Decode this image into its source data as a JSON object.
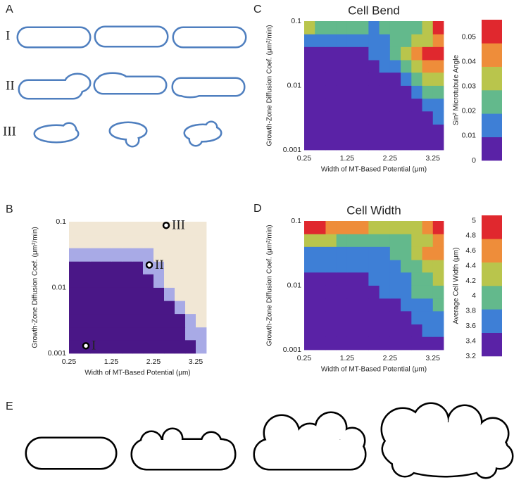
{
  "panel_labels": [
    "A",
    "B",
    "C",
    "D",
    "E"
  ],
  "panel_a": {
    "row_labels": [
      "I",
      "II",
      "III"
    ]
  },
  "chart_data": [
    {
      "type": "heatmap",
      "xlabel": "Width of MT-Based Potential (μm)",
      "ylabel": "Growth-Zone Diffusion Coef. (μm²/min)",
      "xlim": [
        0.25,
        3.5
      ],
      "xticks": [
        0.25,
        1.25,
        2.25,
        3.25
      ],
      "ylim": [
        0.001,
        0.1
      ],
      "yticks": [
        0.1,
        0.01,
        0.001
      ],
      "log_y": true,
      "xbins": [
        0.25,
        0.5,
        0.75,
        1,
        1.25,
        1.5,
        1.75,
        2,
        2.25,
        2.5,
        2.75,
        3,
        3.25,
        3.5
      ],
      "ybins": [
        0.001,
        0.0016,
        0.0025,
        0.004,
        0.0063,
        0.01,
        0.016,
        0.025,
        0.04,
        0.063,
        0.1
      ],
      "colors": [
        "#4a1787",
        "#a8aae6",
        "#f1e7d5"
      ],
      "z": [
        [
          0,
          0,
          0,
          0,
          0,
          0,
          0,
          0,
          0,
          0,
          0,
          0,
          1
        ],
        [
          0,
          0,
          0,
          0,
          0,
          0,
          0,
          0,
          0,
          0,
          0,
          1,
          1
        ],
        [
          0,
          0,
          0,
          0,
          0,
          0,
          0,
          0,
          0,
          0,
          0,
          1,
          2
        ],
        [
          0,
          0,
          0,
          0,
          0,
          0,
          0,
          0,
          0,
          0,
          1,
          2,
          2
        ],
        [
          0,
          0,
          0,
          0,
          0,
          0,
          0,
          0,
          0,
          1,
          2,
          2,
          2
        ],
        [
          0,
          0,
          0,
          0,
          0,
          0,
          0,
          0,
          1,
          2,
          2,
          2,
          2
        ],
        [
          0,
          0,
          0,
          0,
          0,
          0,
          0,
          1,
          1,
          2,
          2,
          2,
          2
        ],
        [
          1,
          1,
          1,
          1,
          1,
          1,
          1,
          1,
          2,
          2,
          2,
          2,
          2
        ],
        [
          2,
          2,
          2,
          2,
          2,
          2,
          2,
          2,
          2,
          2,
          2,
          2,
          2
        ],
        [
          2,
          2,
          2,
          2,
          2,
          2,
          2,
          2,
          2,
          2,
          2,
          2,
          2
        ]
      ],
      "points": [
        {
          "label": "I",
          "x": 0.65,
          "y": 0.0013
        },
        {
          "label": "II",
          "x": 2.15,
          "y": 0.022
        },
        {
          "label": "III",
          "x": 2.55,
          "y": 0.088
        }
      ]
    },
    {
      "type": "heatmap",
      "title": "Cell Bend",
      "xlabel": "Width of MT-Based Potential (μm)",
      "ylabel": "Growth-Zone Diffusion Coef. (μm²/min)",
      "xlim": [
        0.25,
        3.5
      ],
      "xticks": [
        0.25,
        1.25,
        2.25,
        3.25
      ],
      "ylim": [
        0.001,
        0.1
      ],
      "yticks": [
        0.1,
        0.01,
        0.001
      ],
      "log_y": true,
      "xbins": [
        0.25,
        0.5,
        0.75,
        1,
        1.25,
        1.5,
        1.75,
        2,
        2.25,
        2.5,
        2.75,
        3,
        3.25,
        3.5
      ],
      "ybins": [
        0.001,
        0.0016,
        0.0025,
        0.004,
        0.0063,
        0.01,
        0.016,
        0.025,
        0.04,
        0.063,
        0.1
      ],
      "colors": [
        "#5a22a6",
        "#3e7fd6",
        "#63b98c",
        "#b9c54c",
        "#ee8d3a",
        "#e0282e"
      ],
      "zlim": [
        0,
        0.057
      ],
      "zticks": [
        0,
        0.01,
        0.02,
        0.03,
        0.04,
        0.05
      ],
      "zlabel": "Sin² Microtubule Angle",
      "z": [
        [
          0.004,
          0.004,
          0.004,
          0.004,
          0.004,
          0.004,
          0.004,
          0.004,
          0.004,
          0.004,
          0.004,
          0.004,
          0.008
        ],
        [
          0.004,
          0.004,
          0.004,
          0.004,
          0.004,
          0.004,
          0.004,
          0.004,
          0.004,
          0.004,
          0.004,
          0.005,
          0.009
        ],
        [
          0.004,
          0.004,
          0.004,
          0.004,
          0.004,
          0.004,
          0.004,
          0.004,
          0.004,
          0.004,
          0.005,
          0.006,
          0.011
        ],
        [
          0.004,
          0.004,
          0.004,
          0.004,
          0.004,
          0.004,
          0.004,
          0.004,
          0.004,
          0.004,
          0.007,
          0.012,
          0.015
        ],
        [
          0.005,
          0.005,
          0.005,
          0.005,
          0.005,
          0.005,
          0.005,
          0.005,
          0.005,
          0.008,
          0.013,
          0.02,
          0.022
        ],
        [
          0.005,
          0.005,
          0.005,
          0.005,
          0.005,
          0.005,
          0.005,
          0.005,
          0.009,
          0.014,
          0.022,
          0.03,
          0.032
        ],
        [
          0.006,
          0.006,
          0.006,
          0.006,
          0.006,
          0.006,
          0.006,
          0.01,
          0.015,
          0.024,
          0.03,
          0.04,
          0.042
        ],
        [
          0.008,
          0.008,
          0.008,
          0.008,
          0.008,
          0.008,
          0.012,
          0.016,
          0.022,
          0.03,
          0.04,
          0.048,
          0.05
        ],
        [
          0.012,
          0.012,
          0.011,
          0.011,
          0.01,
          0.01,
          0.012,
          0.015,
          0.02,
          0.025,
          0.03,
          0.035,
          0.04
        ],
        [
          0.035,
          0.028,
          0.025,
          0.022,
          0.02,
          0.02,
          0.018,
          0.02,
          0.022,
          0.025,
          0.028,
          0.03,
          0.056
        ]
      ]
    },
    {
      "type": "heatmap",
      "title": "Cell Width",
      "xlabel": "Width of MT-Based Potential (μm)",
      "ylabel": "Growth-Zone Diffusion Coef. (μm²/min)",
      "xlim": [
        0.25,
        3.5
      ],
      "xticks": [
        0.25,
        1.25,
        2.25,
        3.25
      ],
      "ylim": [
        0.001,
        0.1
      ],
      "yticks": [
        0.1,
        0.01,
        0.001
      ],
      "log_y": true,
      "xbins": [
        0.25,
        0.5,
        0.75,
        1,
        1.25,
        1.5,
        1.75,
        2,
        2.25,
        2.5,
        2.75,
        3,
        3.25,
        3.5
      ],
      "ybins": [
        0.001,
        0.0016,
        0.0025,
        0.004,
        0.0063,
        0.01,
        0.016,
        0.025,
        0.04,
        0.063,
        0.1
      ],
      "colors": [
        "#5a22a6",
        "#3e7fd6",
        "#63b98c",
        "#b9c54c",
        "#ee8d3a",
        "#e0282e"
      ],
      "zlim": [
        3.2,
        5.07
      ],
      "zticks": [
        3.2,
        3.4,
        3.6,
        3.8,
        4,
        4.2,
        4.4,
        4.6,
        4.8,
        5
      ],
      "zlabel": "Average Cell Width (μm)",
      "z": [
        [
          3.3,
          3.3,
          3.3,
          3.3,
          3.3,
          3.3,
          3.3,
          3.3,
          3.3,
          3.3,
          3.4,
          3.45,
          3.5
        ],
        [
          3.3,
          3.3,
          3.3,
          3.3,
          3.3,
          3.3,
          3.3,
          3.3,
          3.3,
          3.4,
          3.45,
          3.55,
          3.6
        ],
        [
          3.3,
          3.3,
          3.3,
          3.3,
          3.3,
          3.3,
          3.3,
          3.3,
          3.4,
          3.5,
          3.55,
          3.65,
          3.7
        ],
        [
          3.35,
          3.35,
          3.35,
          3.35,
          3.35,
          3.35,
          3.35,
          3.45,
          3.5,
          3.6,
          3.7,
          3.8,
          3.85
        ],
        [
          3.4,
          3.4,
          3.4,
          3.4,
          3.4,
          3.4,
          3.45,
          3.55,
          3.6,
          3.7,
          3.85,
          3.95,
          4.0
        ],
        [
          3.45,
          3.45,
          3.45,
          3.45,
          3.45,
          3.5,
          3.55,
          3.6,
          3.7,
          3.8,
          3.95,
          4.1,
          4.2
        ],
        [
          3.55,
          3.55,
          3.55,
          3.55,
          3.55,
          3.6,
          3.65,
          3.7,
          3.8,
          3.9,
          4.1,
          4.3,
          4.4
        ],
        [
          3.8,
          3.8,
          3.75,
          3.75,
          3.7,
          3.7,
          3.75,
          3.8,
          3.9,
          4.05,
          4.25,
          4.45,
          4.7
        ],
        [
          4.2,
          4.2,
          4.15,
          4.1,
          4.05,
          4.0,
          4.0,
          4.0,
          4.05,
          4.1,
          4.2,
          4.4,
          4.6
        ],
        [
          5.0,
          4.8,
          4.7,
          4.55,
          4.5,
          4.5,
          4.3,
          4.2,
          4.15,
          4.2,
          4.3,
          4.5,
          4.9
        ]
      ]
    }
  ]
}
